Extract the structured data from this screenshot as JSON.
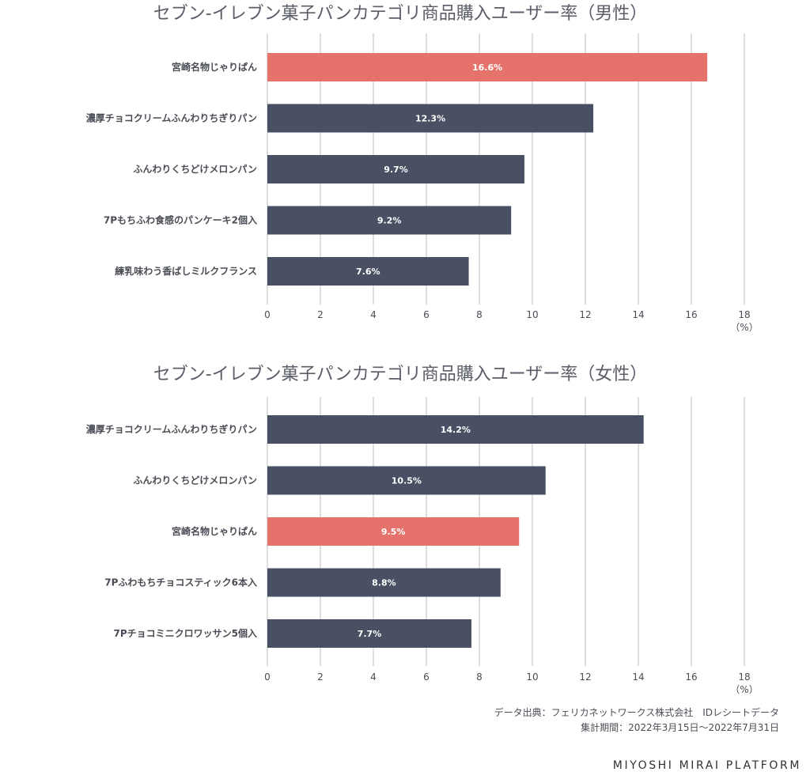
{
  "chart_data": [
    {
      "type": "bar",
      "orientation": "horizontal",
      "title": "セブン-イレブン菓子パンカテゴリ商品購入ユーザー率（男性）",
      "categories": [
        "宮崎名物じゃりぱん",
        "濃厚チョコクリームふんわりちぎりパン",
        "ふんわりくちどけメロンパン",
        "7Pもちふわ食感のパンケーキ2個入",
        "練乳味わう香ばしミルクフランス"
      ],
      "values": [
        16.6,
        12.3,
        9.7,
        9.2,
        7.6
      ],
      "data_labels": [
        "16.6%",
        "12.3%",
        "9.7%",
        "9.2%",
        "7.6%"
      ],
      "highlight": [
        true,
        false,
        false,
        false,
        false
      ],
      "xlim": [
        0,
        18
      ],
      "xticks": [
        0,
        2,
        4,
        6,
        8,
        10,
        12,
        14,
        16,
        18
      ],
      "xunit": "（%）",
      "grid": true
    },
    {
      "type": "bar",
      "orientation": "horizontal",
      "title": "セブン-イレブン菓子パンカテゴリ商品購入ユーザー率（女性）",
      "categories": [
        "濃厚チョコクリームふんわりちぎりパン",
        "ふんわりくちどけメロンパン",
        "宮崎名物じゃりぱん",
        "7Pふわもちチョコスティック6本入",
        "7Pチョコミニクロワッサン5個入"
      ],
      "values": [
        14.2,
        10.5,
        9.5,
        8.8,
        7.7
      ],
      "data_labels": [
        "14.2%",
        "10.5%",
        "9.5%",
        "8.8%",
        "7.7%"
      ],
      "highlight": [
        false,
        false,
        true,
        false,
        false
      ],
      "xlim": [
        0,
        18
      ],
      "xticks": [
        0,
        2,
        4,
        6,
        8,
        10,
        12,
        14,
        16,
        18
      ],
      "xunit": "（%）",
      "grid": true
    }
  ],
  "colors": {
    "bar": "#4a5063",
    "highlight": "#e5736c",
    "grid": "#bdbdbd",
    "text": "#4a4d55"
  },
  "source_line1": "データ出典：フェリカネットワークス株式会社　IDレシートデータ",
  "source_line2": "集計期間：2022年3月15日〜2022年7月31日",
  "brand": "MIYOSHI MIRAI PLATFORM"
}
